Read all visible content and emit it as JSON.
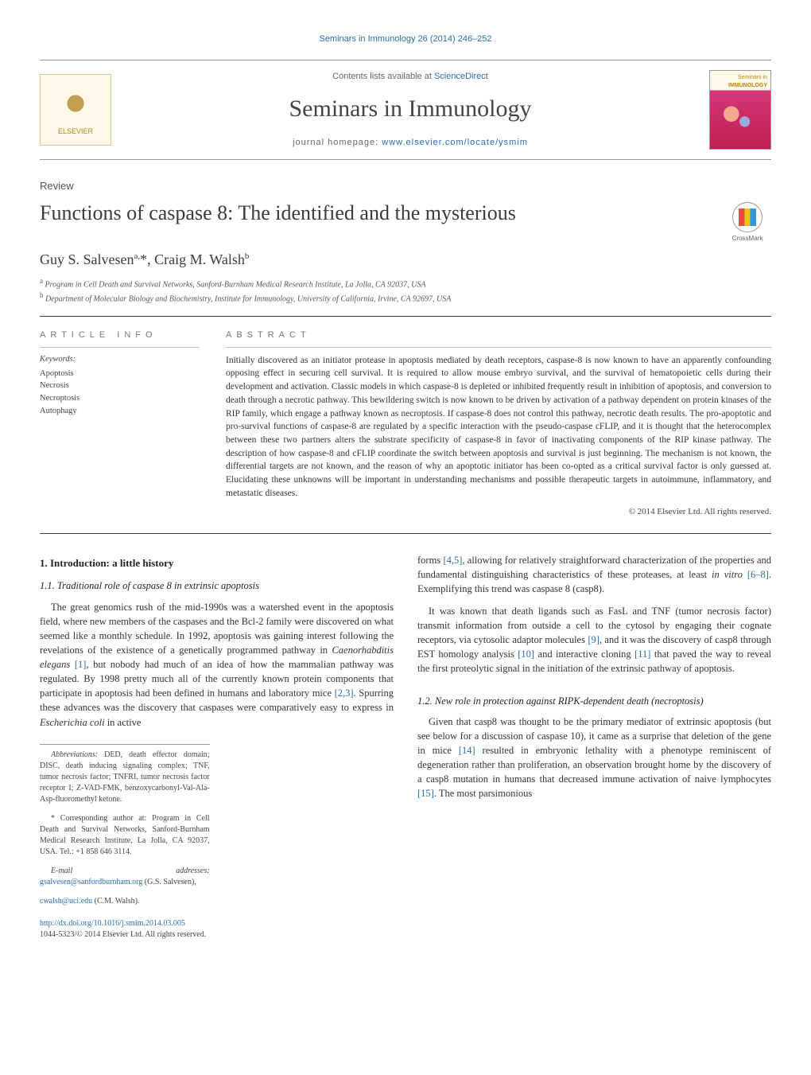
{
  "citation": "Seminars in Immunology 26 (2014) 246–252",
  "banner": {
    "contents_prefix": "Contents lists available at ",
    "contents_link": "ScienceDirect",
    "journal_name": "Seminars in Immunology",
    "homepage_prefix": "journal homepage: ",
    "homepage_url": "www.elsevier.com/locate/ysmim",
    "publisher": "ELSEVIER",
    "cover_top_text": "Seminars in",
    "cover_bottom_text": "IMMUNOLOGY"
  },
  "article_type": "Review",
  "title": "Functions of caspase 8: The identified and the mysterious",
  "crossmark_label": "CrossMark",
  "authors_html": "Guy S. Salvesen<sup>a,</sup>*, Craig M. Walsh<sup>b</sup>",
  "affiliations": [
    "a Program in Cell Death and Survival Networks, Sanford-Burnham Medical Research Institute, La Jolla, CA 92037, USA",
    "b Department of Molecular Biology and Biochemistry, Institute for Immunology, University of California, Irvine, CA 92697, USA"
  ],
  "info_header": "ARTICLE INFO",
  "abstract_header": "ABSTRACT",
  "keywords_label": "Keywords:",
  "keywords": [
    "Apoptosis",
    "Necrosis",
    "Necroptosis",
    "Autophagy"
  ],
  "abstract": "Initially discovered as an initiator protease in apoptosis mediated by death receptors, caspase-8 is now known to have an apparently confounding opposing effect in securing cell survival. It is required to allow mouse embryo survival, and the survival of hematopoietic cells during their development and activation. Classic models in which caspase-8 is depleted or inhibited frequently result in inhibition of apoptosis, and conversion to death through a necrotic pathway. This bewildering switch is now known to be driven by activation of a pathway dependent on protein kinases of the RIP family, which engage a pathway known as necroptosis. If caspase-8 does not control this pathway, necrotic death results. The pro-apoptotic and pro-survival functions of caspase-8 are regulated by a specific interaction with the pseudo-caspase cFLIP, and it is thought that the heterocomplex between these two partners alters the substrate specificity of caspase-8 in favor of inactivating components of the RIP kinase pathway. The description of how caspase-8 and cFLIP coordinate the switch between apoptosis and survival is just beginning. The mechanism is not known, the differential targets are not known, and the reason of why an apoptotic initiator has been co-opted as a critical survival factor is only guessed at. Elucidating these unknowns will be important in understanding mechanisms and possible therapeutic targets in autoimmune, inflammatory, and metastatic diseases.",
  "copyright": "© 2014 Elsevier Ltd. All rights reserved.",
  "sections": {
    "s1_heading": "1. Introduction: a little history",
    "s11_heading": "1.1. Traditional role of caspase 8 in extrinsic apoptosis",
    "s11_p1_a": "The great genomics rush of the mid-1990s was a watershed event in the apoptosis field, where new members of the caspases and the Bcl-2 family were discovered on what seemed like a monthly schedule. In 1992, apoptosis was gaining interest following the revelations of the existence of a genetically programmed pathway in ",
    "s11_p1_taxon": "Caenorhabditis elegans",
    "s11_p1_b": " ",
    "s11_p1_ref1": "[1]",
    "s11_p1_c": ", but nobody had much of an idea of how the mammalian pathway was regulated. By 1998 pretty much all of the currently known protein components that participate in apoptosis had been defined in humans and laboratory mice ",
    "s11_p1_ref2": "[2,3]",
    "s11_p1_d": ". Spurring these advances was the discovery that caspases were comparatively easy to express in ",
    "s11_p1_taxon2": "Escherichia coli",
    "s11_p1_e": " in active",
    "s11_p2_a": "forms ",
    "s11_p2_ref1": "[4,5]",
    "s11_p2_b": ", allowing for relatively straightforward characterization of the properties and fundamental distinguishing characteristics of these proteases, at least ",
    "s11_p2_invitro": "in vitro",
    "s11_p2_c": " ",
    "s11_p2_ref2": "[6–8]",
    "s11_p2_d": ". Exemplifying this trend was caspase 8 (casp8).",
    "s11_p3_a": "It was known that death ligands such as FasL and TNF (tumor necrosis factor) transmit information from outside a cell to the cytosol by engaging their cognate receptors, via cytosolic adaptor molecules ",
    "s11_p3_ref1": "[9]",
    "s11_p3_b": ", and it was the discovery of casp8 through EST homology analysis ",
    "s11_p3_ref2": "[10]",
    "s11_p3_c": " and interactive cloning ",
    "s11_p3_ref3": "[11]",
    "s11_p3_d": " that paved the way to reveal the first proteolytic signal in the initiation of the extrinsic pathway of apoptosis.",
    "s12_heading": "1.2. New role in protection against RIPK-dependent death (necroptosis)",
    "s12_p1_a": "Given that casp8 was thought to be the primary mediator of extrinsic apoptosis (but see below for a discussion of caspase 10), it came as a surprise that deletion of the gene in mice ",
    "s12_p1_ref1": "[14]",
    "s12_p1_b": " resulted in embryonic lethality with a phenotype reminiscent of degeneration rather than proliferation, an observation brought home by the discovery of a casp8 mutation in humans that decreased immune activation of naive lymphocytes ",
    "s12_p1_ref2": "[15]",
    "s12_p1_c": ". The most parsimonious"
  },
  "footnotes": {
    "abbrev_label": "Abbreviations:",
    "abbrev_text": " DED, death effector domain; DISC, death inducing signaling complex; TNF, tumor necrosis factor; TNFRI, tumor necrosis factor receptor I; Z-VAD-FMK, benzoxycarbonyl-Val-Ala-Asp-fluoromethyl ketone.",
    "corr_label": "* Corresponding author at: Program in Cell Death and Survival Networks, Sanford-Burnham Medical Research Institute, La Jolla, CA 92037, USA. Tel.: +1 858 646 3114.",
    "email_label": "E-mail addresses:",
    "email1": "gsalvesen@sanfordburnham.org",
    "email1_name": "(G.S. Salvesen),",
    "email2": "cwalsh@uci.edu",
    "email2_name": "(C.M. Walsh)."
  },
  "footer": {
    "doi": "http://dx.doi.org/10.1016/j.smim.2014.03.005",
    "issn_copyright": "1044-5323/© 2014 Elsevier Ltd. All rights reserved."
  },
  "colors": {
    "link": "#2b6cb0",
    "text": "#333333",
    "rule": "#333333",
    "banner_bg": "#fef8e8"
  }
}
